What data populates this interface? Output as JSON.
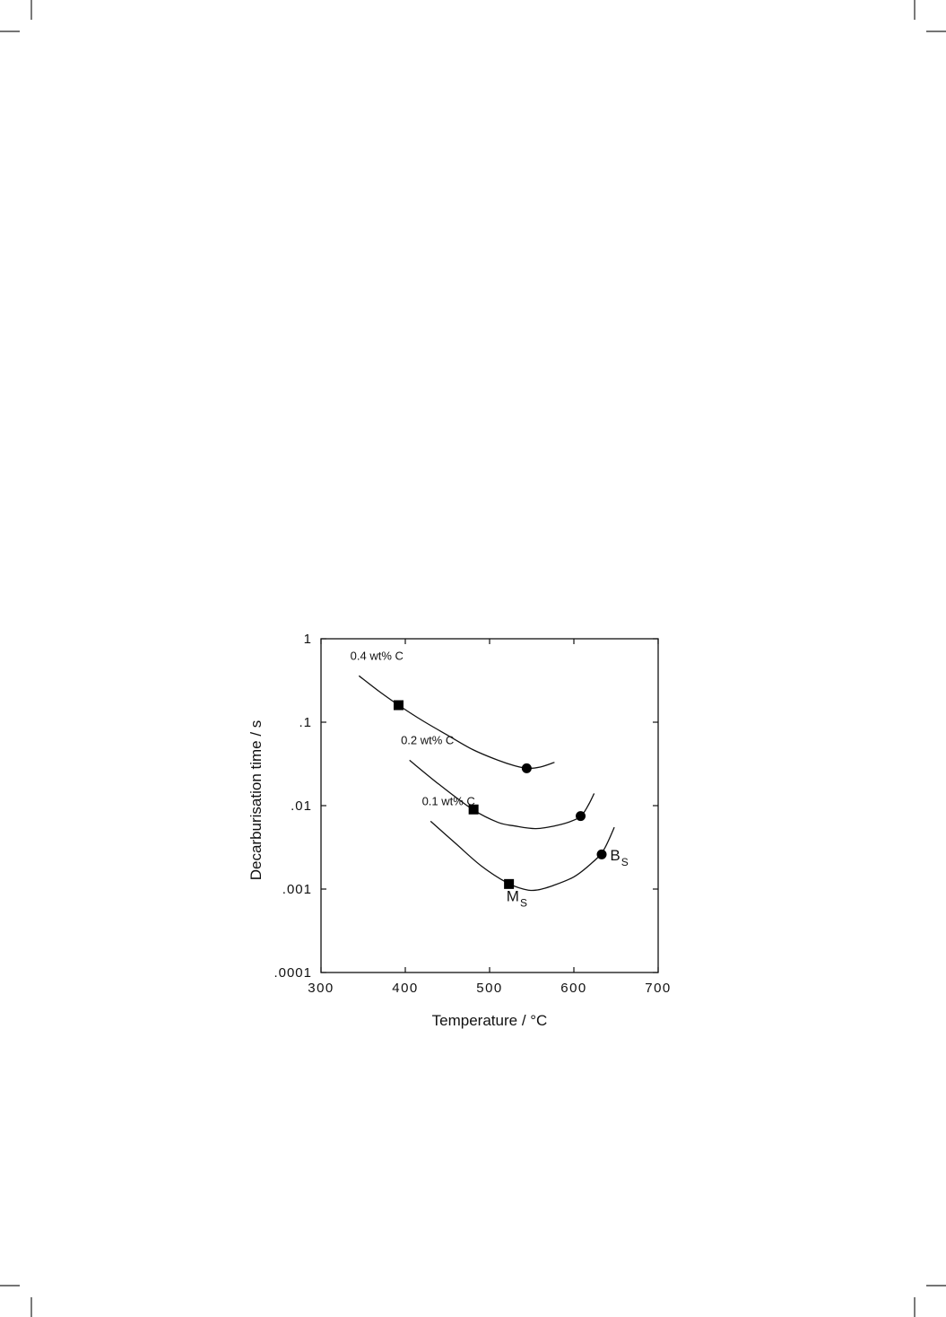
{
  "chart_data": {
    "type": "line",
    "xlabel": "Temperature  /  °C",
    "ylabel": "Decarburisation  time  /  s",
    "xlim": [
      300,
      700
    ],
    "ylim": [
      0.0001,
      1
    ],
    "yscale": "log",
    "xticks": [
      300,
      400,
      500,
      600,
      700
    ],
    "xtick_labels": [
      "300",
      "400",
      "500",
      "600",
      "700"
    ],
    "yticks": [
      0.0001,
      0.001,
      0.01,
      0.1,
      1
    ],
    "ytick_labels": [
      ".0001",
      ".001",
      ".01",
      ".1",
      "1"
    ],
    "grid": false,
    "legend": "none",
    "series": [
      {
        "name": "0.4 wt% C",
        "x": [
          345,
          370,
          392,
          420,
          450,
          480,
          510,
          530,
          545,
          560,
          577
        ],
        "y": [
          0.36,
          0.23,
          0.16,
          0.105,
          0.07,
          0.047,
          0.035,
          0.03,
          0.028,
          0.029,
          0.033
        ],
        "markers": [
          {
            "x": 392,
            "y": 0.16,
            "shape": "square"
          },
          {
            "x": 544,
            "y": 0.028,
            "shape": "circle"
          }
        ]
      },
      {
        "name": "0.2 wt% C",
        "x": [
          405,
          440,
          480,
          510,
          530,
          555,
          580,
          600,
          610,
          618,
          624
        ],
        "y": [
          0.035,
          0.018,
          0.009,
          0.0063,
          0.0057,
          0.0053,
          0.0058,
          0.0067,
          0.0078,
          0.0105,
          0.014
        ],
        "markers": [
          {
            "x": 481,
            "y": 0.009,
            "shape": "square"
          },
          {
            "x": 608,
            "y": 0.0075,
            "shape": "circle"
          }
        ]
      },
      {
        "name": "0.1 wt% C",
        "x": [
          430,
          460,
          490,
          520,
          540,
          555,
          575,
          600,
          620,
          635,
          648
        ],
        "y": [
          0.0065,
          0.0035,
          0.0019,
          0.0012,
          0.001,
          0.00097,
          0.0011,
          0.0014,
          0.002,
          0.0029,
          0.0055
        ],
        "markers": [
          {
            "x": 523,
            "y": 0.00115,
            "shape": "square"
          },
          {
            "x": 633,
            "y": 0.0026,
            "shape": "circle"
          }
        ]
      }
    ],
    "annotations": [
      {
        "label": "M",
        "sub": "S",
        "x": 520,
        "y": 0.00072
      },
      {
        "label": "B",
        "sub": "S",
        "x": 643,
        "y": 0.0022
      }
    ]
  }
}
